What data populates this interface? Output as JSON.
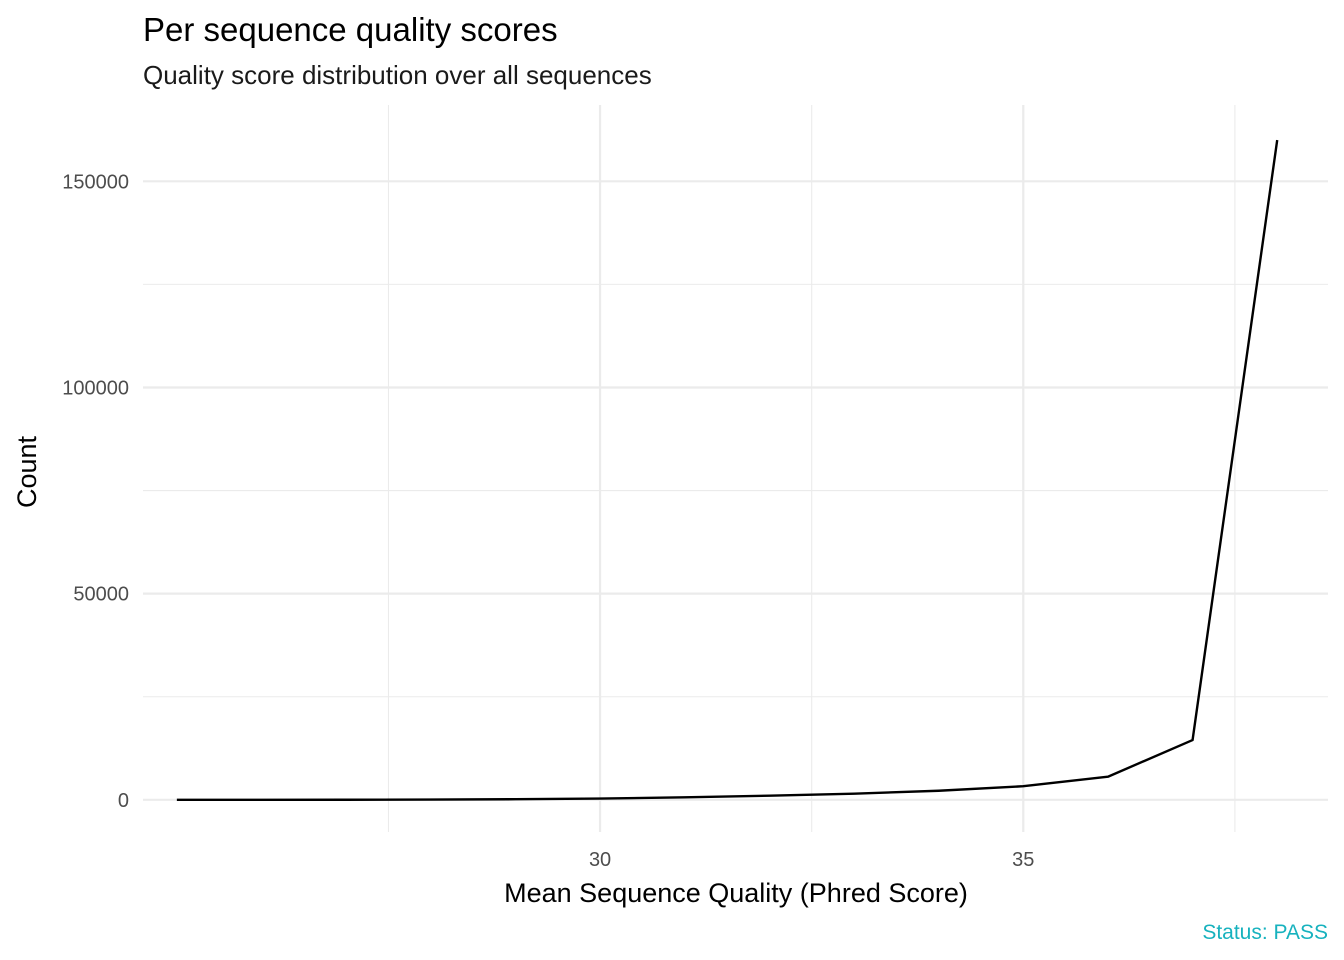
{
  "chart_data": {
    "type": "line",
    "title": "Per sequence quality scores",
    "subtitle": "Quality score distribution over all sequences",
    "xlabel": "Mean Sequence Quality (Phred Score)",
    "ylabel": "Count",
    "caption": "Status: PASS",
    "caption_color": "#17b2be",
    "line_color": "#000000",
    "grid": true,
    "legend": "none",
    "xlim": [
      24.6,
      38.6
    ],
    "ylim": [
      -7800,
      168500
    ],
    "x_ticks": [
      30,
      35
    ],
    "x_minor_ticks": [
      27.5,
      32.5,
      37.5
    ],
    "y_ticks": [
      0,
      50000,
      100000,
      150000
    ],
    "y_minor_ticks": [
      25000,
      75000,
      125000
    ],
    "series": [
      {
        "x": [
          25,
          26,
          27,
          28,
          29,
          30,
          31,
          32,
          33,
          34,
          35,
          36,
          37,
          38
        ],
        "y": [
          0,
          5,
          20,
          60,
          150,
          300,
          600,
          1000,
          1500,
          2200,
          3300,
          5600,
          14500,
          160000
        ]
      }
    ]
  }
}
